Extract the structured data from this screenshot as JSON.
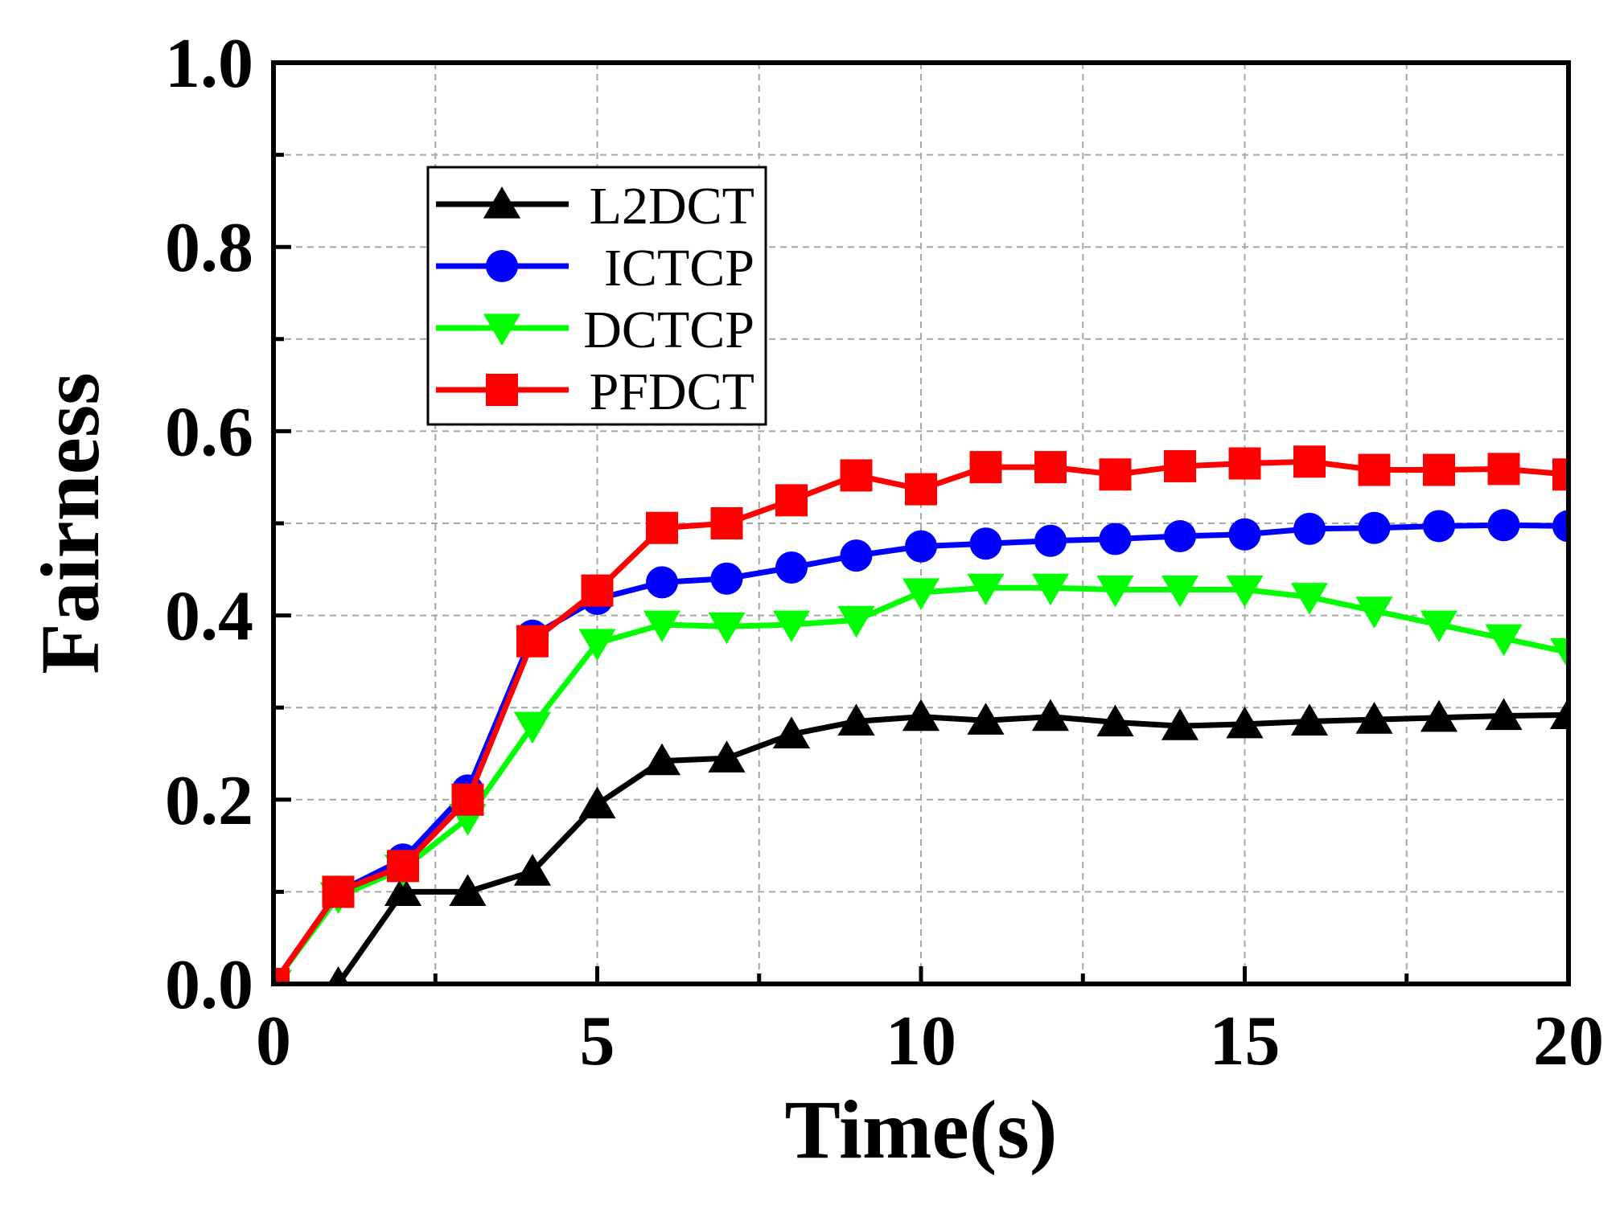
{
  "chart_data": {
    "type": "line",
    "title": "",
    "xlabel": "Time(s)",
    "ylabel": "Fairness",
    "xlim": [
      0,
      20
    ],
    "ylim": [
      0,
      1.0
    ],
    "x_ticks": [
      "0",
      "5",
      "10",
      "15",
      "20"
    ],
    "y_ticks": [
      "0.0",
      "0.2",
      "0.4",
      "0.6",
      "0.8",
      "1.0"
    ],
    "grid": true,
    "legend_position": "upper-left",
    "series": [
      {
        "name": "L2DCT",
        "color": "#000000",
        "marker": "triangle-up",
        "x": [
          1,
          2,
          3,
          4,
          5,
          6,
          7,
          8,
          9,
          10,
          11,
          12,
          13,
          14,
          15,
          16,
          17,
          18,
          19,
          20
        ],
        "values": [
          0.0,
          0.1,
          0.1,
          0.122,
          0.195,
          0.242,
          0.245,
          0.271,
          0.285,
          0.29,
          0.286,
          0.29,
          0.284,
          0.28,
          0.282,
          0.285,
          0.287,
          0.289,
          0.291,
          0.292
        ]
      },
      {
        "name": "ICTCP",
        "color": "#0000ff",
        "marker": "circle",
        "x": [
          0,
          1,
          2,
          3,
          4,
          5,
          6,
          7,
          8,
          9,
          10,
          11,
          12,
          13,
          14,
          15,
          16,
          17,
          18,
          19,
          20
        ],
        "values": [
          0.0,
          0.1,
          0.135,
          0.21,
          0.378,
          0.418,
          0.436,
          0.44,
          0.452,
          0.465,
          0.475,
          0.478,
          0.481,
          0.483,
          0.486,
          0.488,
          0.494,
          0.495,
          0.497,
          0.498,
          0.497
        ]
      },
      {
        "name": "DCTCP",
        "color": "#00ff00",
        "marker": "triangle-down",
        "x": [
          0,
          1,
          2,
          3,
          4,
          5,
          6,
          7,
          8,
          9,
          10,
          11,
          12,
          13,
          14,
          15,
          16,
          17,
          18,
          19,
          20
        ],
        "values": [
          0.0,
          0.095,
          0.125,
          0.18,
          0.28,
          0.37,
          0.39,
          0.388,
          0.39,
          0.395,
          0.425,
          0.43,
          0.43,
          0.428,
          0.428,
          0.428,
          0.42,
          0.405,
          0.39,
          0.375,
          0.36
        ]
      },
      {
        "name": "PFDCT",
        "color": "#ff0000",
        "marker": "square",
        "x": [
          0,
          1,
          2,
          3,
          4,
          5,
          6,
          7,
          8,
          9,
          10,
          11,
          12,
          13,
          14,
          15,
          16,
          17,
          18,
          19,
          20
        ],
        "values": [
          0.0,
          0.1,
          0.128,
          0.2,
          0.372,
          0.427,
          0.495,
          0.5,
          0.525,
          0.552,
          0.537,
          0.561,
          0.561,
          0.553,
          0.562,
          0.565,
          0.567,
          0.558,
          0.558,
          0.559,
          0.553
        ]
      }
    ]
  }
}
